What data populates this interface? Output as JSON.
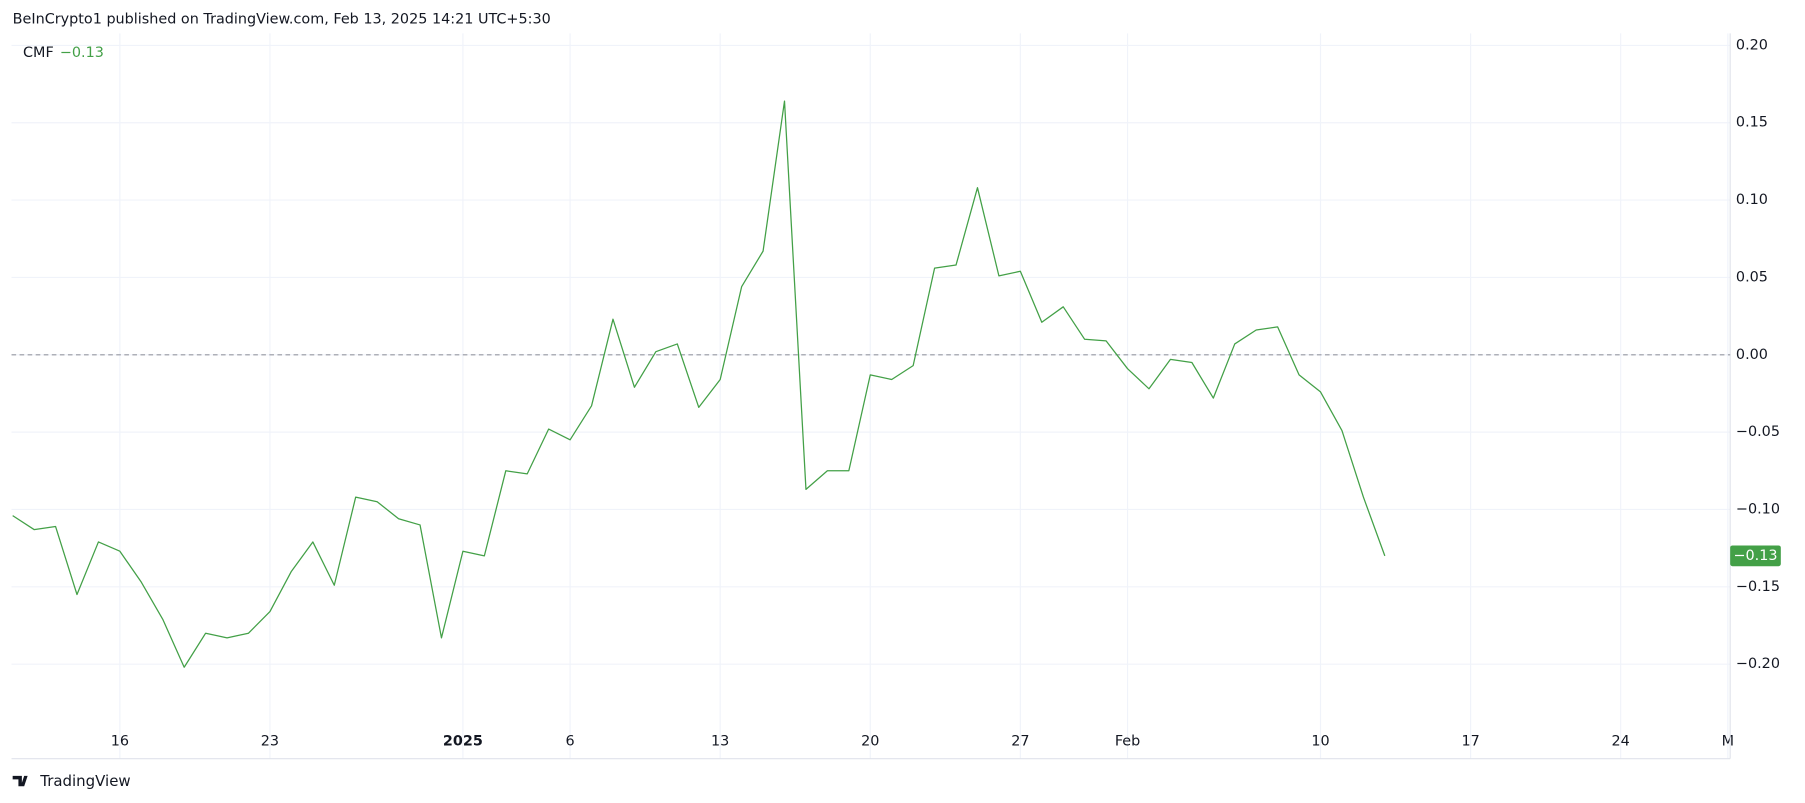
{
  "header": {
    "text": "BeInCrypto1 published on TradingView.com, Feb 13, 2025 14:21 UTC+5:30"
  },
  "footer": {
    "brand": "TradingView"
  },
  "chart_data": {
    "type": "line",
    "indicator": "CMF",
    "x": [
      "2024-12-11",
      "2024-12-12",
      "2024-12-13",
      "2024-12-14",
      "2024-12-15",
      "2024-12-16",
      "2024-12-17",
      "2024-12-18",
      "2024-12-19",
      "2024-12-20",
      "2024-12-21",
      "2024-12-22",
      "2024-12-23",
      "2024-12-24",
      "2024-12-25",
      "2024-12-26",
      "2024-12-27",
      "2024-12-28",
      "2024-12-29",
      "2024-12-30",
      "2024-12-31",
      "2025-01-01",
      "2025-01-02",
      "2025-01-03",
      "2025-01-04",
      "2025-01-05",
      "2025-01-06",
      "2025-01-07",
      "2025-01-08",
      "2025-01-09",
      "2025-01-10",
      "2025-01-11",
      "2025-01-12",
      "2025-01-13",
      "2025-01-14",
      "2025-01-15",
      "2025-01-16",
      "2025-01-17",
      "2025-01-18",
      "2025-01-19",
      "2025-01-20",
      "2025-01-21",
      "2025-01-22",
      "2025-01-23",
      "2025-01-24",
      "2025-01-25",
      "2025-01-26",
      "2025-01-27",
      "2025-01-28",
      "2025-01-29",
      "2025-01-30",
      "2025-01-31",
      "2025-02-01",
      "2025-02-02",
      "2025-02-03",
      "2025-02-04",
      "2025-02-05",
      "2025-02-06",
      "2025-02-07",
      "2025-02-08",
      "2025-02-09",
      "2025-02-10",
      "2025-02-11",
      "2025-02-12",
      "2025-02-13"
    ],
    "series": [
      {
        "name": "CMF",
        "color": "#43a047",
        "last_value_label": "−0.13",
        "values": [
          -0.104,
          -0.113,
          -0.111,
          -0.155,
          -0.121,
          -0.127,
          -0.147,
          -0.171,
          -0.202,
          -0.18,
          -0.183,
          -0.18,
          -0.166,
          -0.14,
          -0.121,
          -0.149,
          -0.092,
          -0.095,
          -0.106,
          -0.11,
          -0.183,
          -0.127,
          -0.13,
          -0.075,
          -0.077,
          -0.048,
          -0.055,
          -0.033,
          0.023,
          -0.021,
          0.002,
          0.007,
          -0.034,
          -0.016,
          0.044,
          0.067,
          0.164,
          -0.087,
          -0.075,
          -0.075,
          -0.013,
          -0.016,
          -0.007,
          0.056,
          0.058,
          0.108,
          0.051,
          0.054,
          0.021,
          0.031,
          0.01,
          0.009,
          -0.009,
          -0.022,
          -0.003,
          -0.005,
          -0.028,
          0.007,
          0.016,
          0.018,
          -0.013,
          -0.024,
          -0.049,
          -0.092,
          -0.13
        ]
      }
    ],
    "xlim": [
      "2024-12-11",
      "2025-03-01"
    ],
    "xticks": [
      {
        "value": "2024-12-16",
        "label": "16"
      },
      {
        "value": "2024-12-23",
        "label": "23"
      },
      {
        "value": "2025-01-01",
        "label": "2025"
      },
      {
        "value": "2025-01-06",
        "label": "6"
      },
      {
        "value": "2025-01-13",
        "label": "13"
      },
      {
        "value": "2025-01-20",
        "label": "20"
      },
      {
        "value": "2025-01-27",
        "label": "27"
      },
      {
        "value": "2025-02-01",
        "label": "Feb"
      },
      {
        "value": "2025-02-10",
        "label": "10"
      },
      {
        "value": "2025-02-17",
        "label": "17"
      },
      {
        "value": "2025-02-24",
        "label": "24"
      },
      {
        "value": "2025-03-01",
        "label": "M"
      }
    ],
    "ylim": [
      -0.241,
      0.207
    ],
    "yticks": [
      {
        "value": 0.2,
        "label": "0.20"
      },
      {
        "value": 0.15,
        "label": "0.15"
      },
      {
        "value": 0.1,
        "label": "0.10"
      },
      {
        "value": 0.05,
        "label": "0.05"
      },
      {
        "value": 0,
        "label": "0.00"
      },
      {
        "value": -0.05,
        "label": "−0.05"
      },
      {
        "value": -0.1,
        "label": "−0.10"
      },
      {
        "value": -0.15,
        "label": "−0.15"
      },
      {
        "value": -0.2,
        "label": "−0.20"
      }
    ],
    "reference_line": 0,
    "grid": true
  }
}
